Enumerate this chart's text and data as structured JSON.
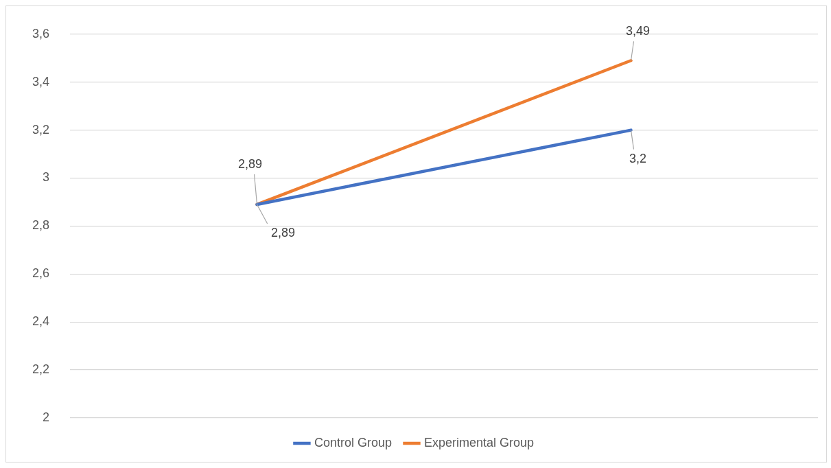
{
  "chart_data": {
    "type": "line",
    "categories": [
      null,
      null
    ],
    "series": [
      {
        "name": "Control Group",
        "color": "#4472c4",
        "values": [
          2.89,
          3.2
        ],
        "value_labels": [
          "2,89",
          "3,2"
        ]
      },
      {
        "name": "Experimental Group",
        "color": "#ed7d31",
        "values": [
          2.89,
          3.49
        ],
        "value_labels": [
          "2,89",
          "3,49"
        ]
      }
    ],
    "ylim": [
      2,
      3.6
    ],
    "yticks": [
      {
        "value": 2,
        "label": "2"
      },
      {
        "value": 2.2,
        "label": "2,2"
      },
      {
        "value": 2.4,
        "label": "2,4"
      },
      {
        "value": 2.6,
        "label": "2,6"
      },
      {
        "value": 2.8,
        "label": "2,8"
      },
      {
        "value": 3,
        "label": "3"
      },
      {
        "value": 3.2,
        "label": "3,2"
      },
      {
        "value": 3.4,
        "label": "3,4"
      },
      {
        "value": 3.6,
        "label": "3,6"
      }
    ],
    "grid": "y",
    "legend": "bottom",
    "marker": "none",
    "line_style": "solid"
  }
}
